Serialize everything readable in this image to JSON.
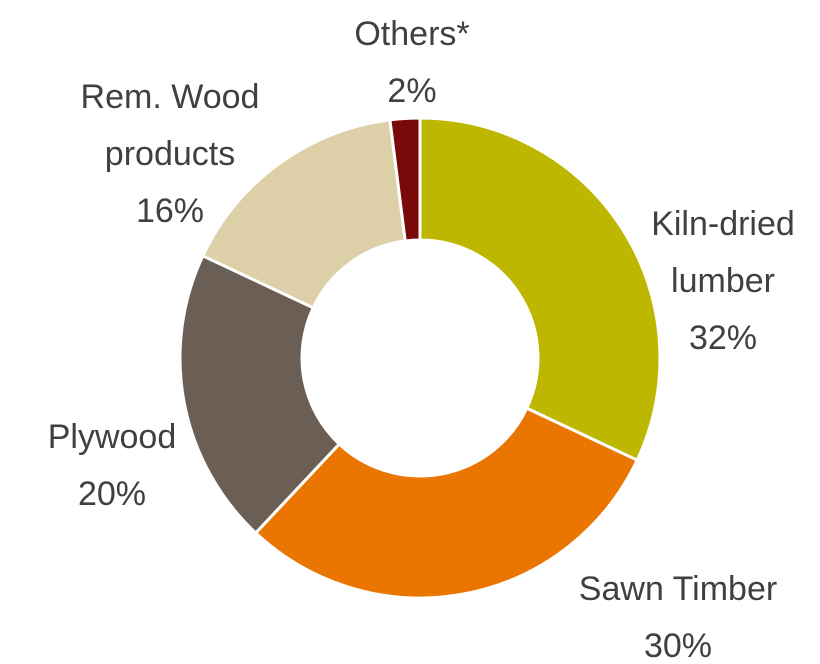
{
  "chart_data": {
    "type": "pie",
    "donut": true,
    "title": "",
    "legend": "none",
    "slices": [
      {
        "name": "Kiln-dried lumber",
        "label_lines": [
          "Kiln-dried",
          "lumber"
        ],
        "pct_label": "32%",
        "value": 32,
        "color": "#BEB700"
      },
      {
        "name": "Sawn Timber",
        "label_lines": [
          "Sawn Timber"
        ],
        "pct_label": "30%",
        "value": 30,
        "color": "#EA7500"
      },
      {
        "name": "Plywood",
        "label_lines": [
          "Plywood"
        ],
        "pct_label": "20%",
        "value": 20,
        "color": "#6B5E55"
      },
      {
        "name": "Rem. Wood products",
        "label_lines": [
          "Rem. Wood",
          "products"
        ],
        "pct_label": "16%",
        "value": 16,
        "color": "#DDD0A8"
      },
      {
        "name": "Others*",
        "label_lines": [
          "Others*"
        ],
        "pct_label": "2%",
        "value": 2,
        "color": "#7A0A0A"
      }
    ]
  }
}
